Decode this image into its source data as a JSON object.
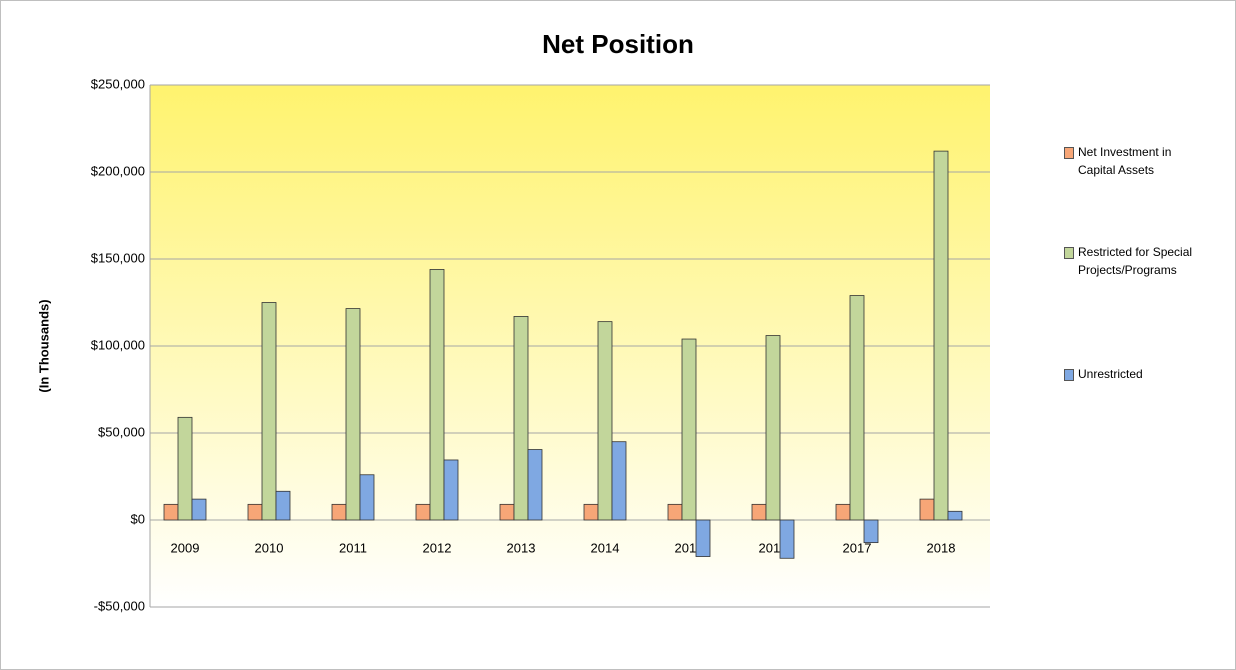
{
  "chart_data": {
    "type": "bar",
    "title": "Net Position",
    "y_label": "(In Thousands)",
    "categories": [
      "2009",
      "2010",
      "2011",
      "2012",
      "2013",
      "2014",
      "2015",
      "2016",
      "2017",
      "2018"
    ],
    "series": [
      {
        "name": "Net Investment in Capital Assets",
        "color": "#f7a677",
        "values": [
          9000,
          9000,
          9000,
          9000,
          9000,
          9000,
          9000,
          9000,
          9000,
          12000
        ]
      },
      {
        "name": "Restricted for Special Projects/Programs",
        "color": "#c2d69b",
        "values": [
          59000,
          125000,
          121500,
          144000,
          117000,
          114000,
          104000,
          106000,
          129000,
          212000
        ]
      },
      {
        "name": "Unrestricted",
        "color": "#7fa8e2",
        "values": [
          12000,
          16500,
          26000,
          34500,
          40500,
          45000,
          -21000,
          -22000,
          -13000,
          5000
        ]
      }
    ],
    "ylim": [
      -50000,
      250000
    ],
    "yticks": [
      {
        "value": -50000,
        "label": "-$50,000"
      },
      {
        "value": 0,
        "label": "$0"
      },
      {
        "value": 50000,
        "label": "$50,000"
      },
      {
        "value": 100000,
        "label": "$100,000"
      },
      {
        "value": 150000,
        "label": "$150,000"
      },
      {
        "value": 200000,
        "label": "$200,000"
      },
      {
        "value": 250000,
        "label": "$250,000"
      }
    ],
    "grid": true,
    "legend": "right"
  }
}
